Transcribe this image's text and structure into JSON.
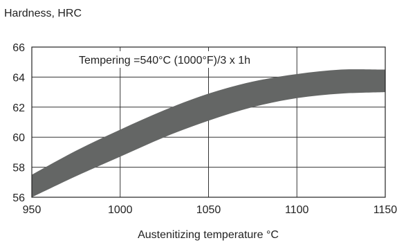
{
  "chart_data": {
    "type": "area",
    "title": "",
    "ylabel": "Hardness, HRC",
    "xlabel": "Austenitizing temperature °C",
    "annotation": "Tempering =540°C (1000°F)/3 x 1h",
    "xlim": [
      950,
      1150
    ],
    "ylim": [
      56,
      66
    ],
    "x_ticks": [
      950,
      1000,
      1050,
      1100,
      1150
    ],
    "y_ticks": [
      56,
      58,
      60,
      62,
      64,
      66
    ],
    "grid": true,
    "band_color": "#646665",
    "series": [
      {
        "x": [
          950,
          975,
          1000,
          1025,
          1050,
          1075,
          1100,
          1125,
          1150
        ],
        "upper": [
          57.5,
          59.1,
          60.5,
          61.8,
          62.9,
          63.7,
          64.2,
          64.5,
          64.5
        ],
        "lower": [
          56.0,
          57.4,
          58.7,
          60.0,
          61.1,
          62.0,
          62.6,
          62.9,
          63.0
        ]
      }
    ]
  }
}
